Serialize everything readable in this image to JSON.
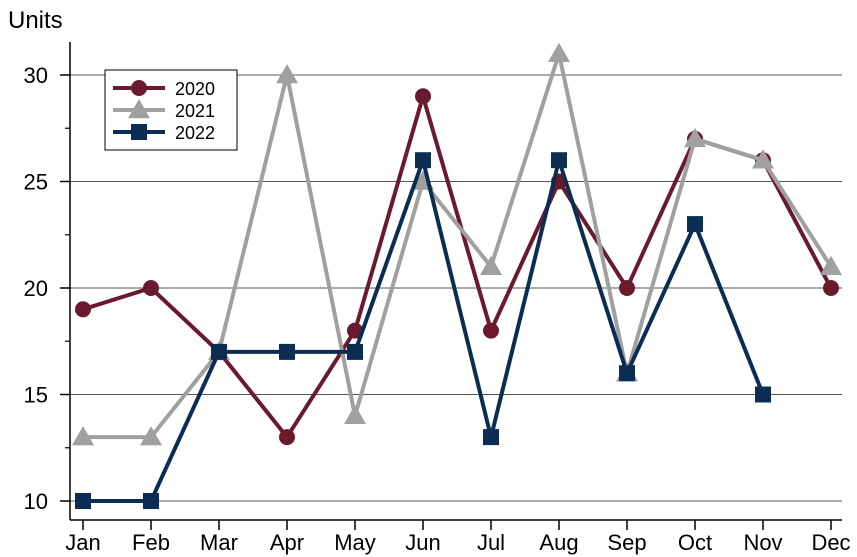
{
  "chart_data": {
    "type": "line",
    "title": "",
    "ylabel": "Units",
    "xlabel": "",
    "categories": [
      "Jan",
      "Feb",
      "Mar",
      "Apr",
      "May",
      "Jun",
      "Jul",
      "Aug",
      "Sep",
      "Oct",
      "Nov",
      "Dec"
    ],
    "ylim": [
      10,
      31
    ],
    "yticks": [
      10,
      15,
      20,
      25,
      30
    ],
    "grid": "horizontal",
    "legend_position": "top-left",
    "series": [
      {
        "name": "2020",
        "marker": "circle",
        "color": "#6b1a2e",
        "values": [
          19,
          20,
          17,
          13,
          18,
          29,
          18,
          25,
          20,
          27,
          26,
          20
        ]
      },
      {
        "name": "2021",
        "marker": "triangle",
        "color": "#a0a0a0",
        "values": [
          13,
          13,
          17,
          30,
          14,
          25,
          21,
          31,
          16,
          27,
          26,
          21
        ]
      },
      {
        "name": "2022",
        "marker": "square",
        "color": "#0c2d53",
        "values": [
          10,
          10,
          17,
          17,
          17,
          26,
          13,
          26,
          16,
          23,
          15,
          null
        ]
      }
    ]
  }
}
